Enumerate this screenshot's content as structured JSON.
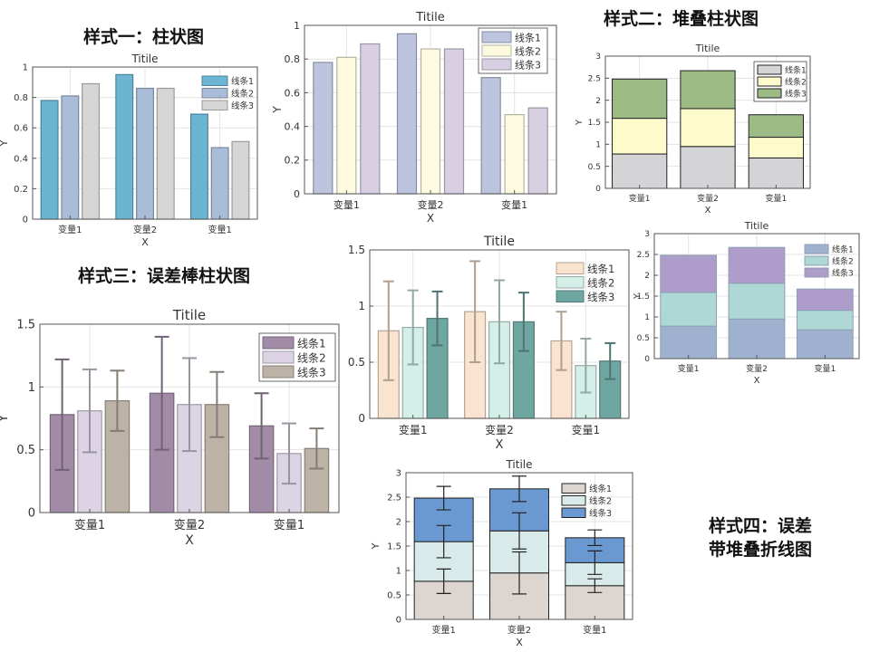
{
  "headings": {
    "h1": "样式一：柱状图",
    "h2": "样式二：堆叠柱状图",
    "h3": "样式三：误差棒柱状图",
    "h4_line1": "样式四：误差",
    "h4_line2": "带堆叠折线图"
  },
  "colors": {
    "c1": [
      "#6BB5D3",
      "#A9BDD8",
      "#D5D5D5"
    ],
    "c2": [
      "#BCC4DE",
      "#FDFAE0",
      "#D8D0E2"
    ],
    "c3": [
      "#D4D4D6",
      "#FDFACC",
      "#9DBB85"
    ],
    "c4": [
      "#9EB2CF",
      "#AED8D6",
      "#AE9DCB"
    ],
    "c5": [
      "#A28BA6",
      "#DCD4E4",
      "#BDB2A6"
    ],
    "c6": [
      "#FAE3CF",
      "#D4EEE8",
      "#6EA6A2"
    ],
    "c7": [
      "#DDD5D0",
      "#D9EAEA",
      "#6A99D1"
    ]
  },
  "chart_data": [
    {
      "id": "style1_bar",
      "type": "bar",
      "title": "Titile",
      "xlabel": "X",
      "ylabel": "Y",
      "categories": [
        "变量1",
        "变量2",
        "变量1"
      ],
      "ylim": [
        0,
        1
      ],
      "yticks": [
        "0",
        "0.2",
        "0.4",
        "0.6",
        "0.8",
        "1"
      ],
      "series": [
        {
          "name": "线条1",
          "values": [
            0.78,
            0.95,
            0.69
          ]
        },
        {
          "name": "线条2",
          "values": [
            0.81,
            0.86,
            0.47
          ]
        },
        {
          "name": "线条3",
          "values": [
            0.89,
            0.86,
            0.51
          ]
        }
      ],
      "legend": "top-right",
      "grid": true
    },
    {
      "id": "style1_bar_b",
      "type": "bar",
      "title": "Titile",
      "xlabel": "X",
      "ylabel": "Y",
      "categories": [
        "变量1",
        "变量2",
        "变量1"
      ],
      "ylim": [
        0,
        1
      ],
      "yticks": [
        "0",
        "0.2",
        "0.4",
        "0.6",
        "0.8",
        "1"
      ],
      "series": [
        {
          "name": "线条1",
          "values": [
            0.78,
            0.95,
            0.69
          ]
        },
        {
          "name": "线条2",
          "values": [
            0.81,
            0.86,
            0.47
          ]
        },
        {
          "name": "线条3",
          "values": [
            0.89,
            0.86,
            0.51
          ]
        }
      ],
      "legend": "top-right",
      "grid": true
    },
    {
      "id": "style2_stacked",
      "type": "bar",
      "stacked": true,
      "title": "Titile",
      "xlabel": "X",
      "ylabel": "Y",
      "categories": [
        "变量1",
        "变量2",
        "变量1"
      ],
      "ylim": [
        0,
        3
      ],
      "yticks": [
        "0",
        "0.5",
        "1",
        "1.5",
        "2",
        "2.5",
        "3"
      ],
      "series": [
        {
          "name": "线条1",
          "values": [
            0.78,
            0.95,
            0.69
          ]
        },
        {
          "name": "线条2",
          "values": [
            0.81,
            0.86,
            0.47
          ]
        },
        {
          "name": "线条3",
          "values": [
            0.89,
            0.86,
            0.51
          ]
        }
      ],
      "legend": "top-right",
      "grid": true
    },
    {
      "id": "style2_stacked_b",
      "type": "bar",
      "stacked": true,
      "title": "Titile",
      "xlabel": "X",
      "ylabel": "Y",
      "categories": [
        "变量1",
        "变量2",
        "变量1"
      ],
      "ylim": [
        0,
        3
      ],
      "yticks": [
        "0",
        "0.5",
        "1",
        "1.5",
        "2",
        "2.5",
        "3"
      ],
      "series": [
        {
          "name": "线条1",
          "values": [
            0.78,
            0.95,
            0.69
          ]
        },
        {
          "name": "线条2",
          "values": [
            0.81,
            0.86,
            0.47
          ]
        },
        {
          "name": "线条3",
          "values": [
            0.89,
            0.86,
            0.51
          ]
        }
      ],
      "legend": "top-right",
      "grid": true
    },
    {
      "id": "style3_errorbar",
      "type": "bar",
      "title": "Titile",
      "xlabel": "X",
      "ylabel": "Y",
      "categories": [
        "变量1",
        "变量2",
        "变量1"
      ],
      "ylim": [
        0,
        1.5
      ],
      "yticks": [
        "0",
        "0.5",
        "1",
        "1.5"
      ],
      "series": [
        {
          "name": "线条1",
          "values": [
            0.78,
            0.95,
            0.69
          ],
          "errors": [
            0.44,
            0.45,
            0.26
          ]
        },
        {
          "name": "线条2",
          "values": [
            0.81,
            0.86,
            0.47
          ],
          "errors": [
            0.33,
            0.37,
            0.24
          ]
        },
        {
          "name": "线条3",
          "values": [
            0.89,
            0.86,
            0.51
          ],
          "errors": [
            0.24,
            0.26,
            0.16
          ]
        }
      ],
      "legend": "top-right",
      "grid": true
    },
    {
      "id": "style3_errorbar_b",
      "type": "bar",
      "title": "Titile",
      "xlabel": "X",
      "ylabel": "",
      "categories": [
        "变量1",
        "变量2",
        "变量1"
      ],
      "ylim": [
        0,
        1.5
      ],
      "yticks": [
        "0",
        "0.5",
        "1",
        "1.5"
      ],
      "series": [
        {
          "name": "线条1",
          "values": [
            0.78,
            0.95,
            0.69
          ],
          "errors": [
            0.44,
            0.45,
            0.26
          ]
        },
        {
          "name": "线条2",
          "values": [
            0.81,
            0.86,
            0.47
          ],
          "errors": [
            0.33,
            0.37,
            0.24
          ]
        },
        {
          "name": "线条3",
          "values": [
            0.89,
            0.86,
            0.51
          ],
          "errors": [
            0.24,
            0.26,
            0.16
          ]
        }
      ],
      "legend": "top-right",
      "grid": true
    },
    {
      "id": "style4_stacked_error",
      "type": "bar",
      "stacked": true,
      "title": "Titile",
      "xlabel": "X",
      "ylabel": "Y",
      "categories": [
        "变量1",
        "变量2",
        "变量1"
      ],
      "ylim": [
        0,
        3
      ],
      "yticks": [
        "0",
        "0.5",
        "1",
        "1.5",
        "2",
        "2.5",
        "3"
      ],
      "series": [
        {
          "name": "线条1",
          "values": [
            0.78,
            0.95,
            0.69
          ],
          "errors": [
            0.25,
            0.43,
            0.14
          ]
        },
        {
          "name": "线条2",
          "values": [
            0.81,
            0.86,
            0.47
          ],
          "errors": [
            0.33,
            0.37,
            0.24
          ]
        },
        {
          "name": "线条3",
          "values": [
            0.89,
            0.86,
            0.51
          ],
          "errors": [
            0.24,
            0.26,
            0.16
          ]
        }
      ],
      "legend": "top-right",
      "grid": true
    }
  ]
}
